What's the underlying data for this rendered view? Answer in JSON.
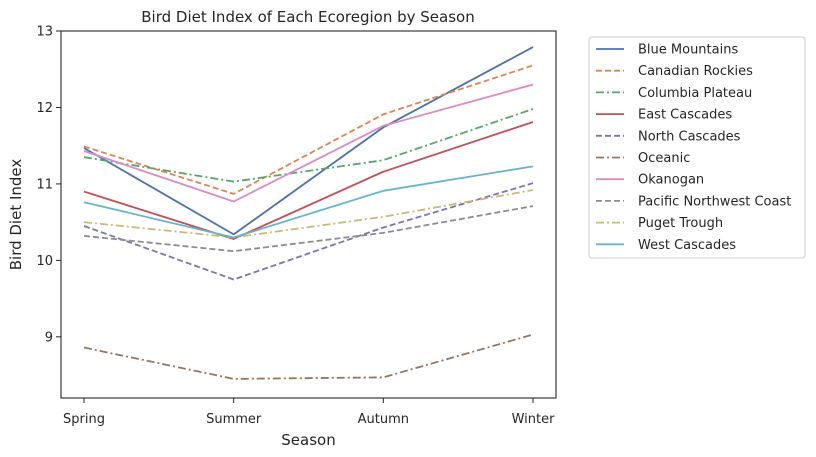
{
  "chart_data": {
    "type": "line",
    "title": "Bird Diet Index of Each Ecoregion by Season",
    "xlabel": "Season",
    "ylabel": "Bird Diet Index",
    "categories": [
      "Spring",
      "Summer",
      "Autumn",
      "Winter"
    ],
    "ylim": [
      8.2,
      13.0
    ],
    "yticks": [
      9,
      10,
      11,
      12,
      13
    ],
    "grid": false,
    "legend_position": "outside-right",
    "series": [
      {
        "name": "Blue Mountains",
        "values": [
          11.47,
          10.34,
          11.74,
          12.79
        ],
        "color": "#4c72b0",
        "dash": "solid"
      },
      {
        "name": "Canadian Rockies",
        "values": [
          11.49,
          10.87,
          11.91,
          12.55
        ],
        "color": "#dd8452",
        "dash": "dashed"
      },
      {
        "name": "Columbia Plateau",
        "values": [
          11.35,
          11.03,
          11.31,
          11.98
        ],
        "color": "#55a868",
        "dash": "dashdot"
      },
      {
        "name": "East Cascades",
        "values": [
          10.9,
          10.28,
          11.16,
          11.81
        ],
        "color": "#c44e52",
        "dash": "solid"
      },
      {
        "name": "North Cascades",
        "values": [
          10.45,
          9.75,
          10.43,
          11.01
        ],
        "color": "#8172b3",
        "dash": "dashed"
      },
      {
        "name": "Oceanic",
        "values": [
          8.86,
          8.45,
          8.47,
          9.03
        ],
        "color": "#937860",
        "dash": "dashdot"
      },
      {
        "name": "Okanogan",
        "values": [
          11.43,
          10.77,
          11.76,
          12.3
        ],
        "color": "#da8bc3",
        "dash": "solid"
      },
      {
        "name": "Pacific Northwest Coast",
        "values": [
          10.32,
          10.12,
          10.36,
          10.71
        ],
        "color": "#8c8c8c",
        "dash": "dashed"
      },
      {
        "name": "Puget Trough",
        "values": [
          10.5,
          10.3,
          10.57,
          10.92
        ],
        "color": "#ccb974",
        "dash": "dashdot"
      },
      {
        "name": "West Cascades",
        "values": [
          10.76,
          10.3,
          10.91,
          11.23
        ],
        "color": "#64b5cd",
        "dash": "solid"
      }
    ]
  }
}
